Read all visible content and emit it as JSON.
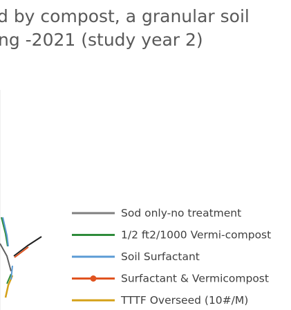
{
  "chart_data": {
    "type": "line",
    "title_lines": [
      "d by compost, a granular soil",
      "ng -2021 (study year 2)"
    ],
    "legend": {
      "placement": "right",
      "entries": [
        {
          "name": "Sod only-no treatment",
          "color": "#7f7f7f",
          "marker": "none"
        },
        {
          "name": "1/2 ft2/1000 Vermi-compost",
          "color": "#2e8b3a",
          "marker": "none"
        },
        {
          "name": "Soil Surfactant",
          "color": "#5b9bd5",
          "marker": "none"
        },
        {
          "name": "Surfactant & Vermicompost",
          "color": "#e0531f",
          "marker": "circle"
        },
        {
          "name": "TTTF Overseed (10#/M)",
          "color": "#d4a017",
          "marker": "none"
        }
      ]
    },
    "grid": true
  }
}
